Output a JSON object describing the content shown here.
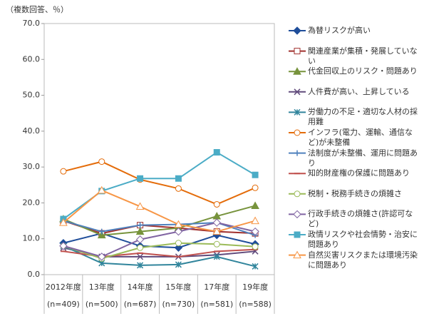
{
  "chart_data": {
    "type": "line",
    "y_label": "（複数回答、％）",
    "categories": [
      "2012年度",
      "13年度",
      "14年度",
      "15年度",
      "17年度",
      "19年度"
    ],
    "sample_sizes": [
      "(n=409)",
      "(n=500)",
      "(n=687)",
      "(n=730)",
      "(n=581)",
      "(n=588)"
    ],
    "ylim": [
      0,
      70
    ],
    "yticks": [
      {
        "value": 0,
        "label": "0.0"
      },
      {
        "value": 10,
        "label": "10.0"
      },
      {
        "value": 20,
        "label": "20.0"
      },
      {
        "value": 30,
        "label": "30.0"
      },
      {
        "value": 40,
        "label": "40.0"
      },
      {
        "value": 50,
        "label": "50.0"
      },
      {
        "value": 60,
        "label": "60.0"
      },
      {
        "value": 70,
        "label": "70.0"
      }
    ],
    "grid": false,
    "series": [
      {
        "name": "為替リスクが高い",
        "color": "#1F4E9A",
        "marker": "diamond",
        "values": [
          8.8,
          11.5,
          8.0,
          7.5,
          11.0,
          8.5
        ]
      },
      {
        "name": "関連産業が集積・発展していない",
        "color": "#A0302E",
        "marker": "square-open",
        "values": [
          15.0,
          11.5,
          13.8,
          13.0,
          12.0,
          11.5
        ]
      },
      {
        "name": "代金回収上のリスク・問題あり",
        "color": "#77933C",
        "marker": "triangle",
        "values": [
          15.5,
          11.0,
          12.0,
          13.0,
          16.3,
          19.2
        ]
      },
      {
        "name": "人件費が高い、上昇している",
        "color": "#604A7B",
        "marker": "x",
        "values": [
          7.5,
          5.0,
          5.0,
          5.0,
          5.5,
          6.5
        ]
      },
      {
        "name": "労働力の不足・適切な人材の採用難",
        "color": "#31859C",
        "marker": "star",
        "values": [
          8.0,
          3.2,
          2.6,
          2.8,
          5.0,
          2.3
        ]
      },
      {
        "name": "インフラ(電力、運輸、通信など)が未整備",
        "color": "#E46C0A",
        "marker": "circle-open",
        "values": [
          28.8,
          31.5,
          26.5,
          24.0,
          19.6,
          24.2
        ]
      },
      {
        "name": "法制度が未整備、運用に問題あり",
        "color": "#4F81BD",
        "marker": "plus",
        "values": [
          15.0,
          12.0,
          13.8,
          14.0,
          14.5,
          11.0
        ]
      },
      {
        "name": "知的財産権の保護に問題あり",
        "color": "#C0504D",
        "marker": "dash",
        "values": [
          6.5,
          5.0,
          6.0,
          5.0,
          6.5,
          7.0
        ]
      },
      {
        "name": "税制・税務手続きの煩雑さ",
        "color": "#9BBB59",
        "marker": "circle-open",
        "values": [
          8.0,
          4.5,
          7.5,
          8.8,
          8.5,
          7.8
        ]
      },
      {
        "name": "行政手続きの煩雑さ(許認可など)",
        "color": "#8064A2",
        "marker": "diamond-open",
        "values": [
          8.0,
          5.0,
          9.8,
          12.0,
          14.5,
          12.0
        ]
      },
      {
        "name": "政情リスクや社会情勢・治安に問題あり",
        "color": "#4BACC6",
        "marker": "square",
        "values": [
          15.5,
          23.3,
          26.8,
          26.8,
          34.1,
          27.8
        ]
      },
      {
        "name": "自然災害リスクまたは環境汚染に問題あり",
        "color": "#F79646",
        "marker": "triangle-open",
        "values": [
          14.5,
          23.5,
          19.0,
          14.0,
          12.0,
          15.0
        ]
      }
    ]
  }
}
